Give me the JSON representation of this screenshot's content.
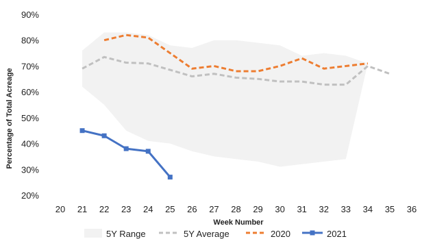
{
  "chart_data": {
    "type": "line",
    "xlabel": "Week Number",
    "ylabel": "Percentage of Total Acreage",
    "x_ticks": [
      20,
      21,
      22,
      23,
      24,
      25,
      26,
      27,
      28,
      29,
      30,
      31,
      32,
      33,
      34,
      35,
      36
    ],
    "xlim": [
      20,
      36
    ],
    "y_ticks": [
      "20%",
      "30%",
      "40%",
      "50%",
      "60%",
      "70%",
      "80%",
      "90%"
    ],
    "ylim": [
      20,
      90
    ],
    "grid": false,
    "legend_position": "bottom",
    "range": {
      "name": "5Y Range",
      "color": "#f2f2f2",
      "x": [
        21,
        22,
        23,
        24,
        25,
        26,
        27,
        28,
        29,
        30,
        31,
        32,
        33,
        34
      ],
      "upper": [
        76,
        83,
        83,
        82,
        78,
        77,
        80,
        80,
        79,
        78,
        74,
        75,
        74,
        71
      ],
      "lower": [
        62,
        55,
        45,
        41,
        40,
        37,
        35,
        34,
        33,
        31,
        32,
        33,
        34,
        71
      ]
    },
    "series": [
      {
        "name": "5Y Average",
        "color": "#c0c0c0",
        "style": "dashed",
        "x": [
          21,
          22,
          23,
          24,
          25,
          26,
          27,
          28,
          29,
          30,
          31,
          32,
          33,
          34,
          35
        ],
        "values": [
          69,
          73.5,
          71.3,
          71,
          68.5,
          66,
          67,
          65.5,
          65,
          64,
          64,
          62.8,
          62.8,
          70,
          67
        ]
      },
      {
        "name": "2020",
        "color": "#ed7d31",
        "style": "dashed",
        "x": [
          22,
          23,
          24,
          25,
          26,
          27,
          28,
          29,
          30,
          31,
          32,
          33,
          34
        ],
        "values": [
          80,
          82,
          81,
          75,
          69,
          70,
          68,
          68,
          70,
          73,
          69,
          70,
          71
        ]
      },
      {
        "name": "2021",
        "color": "#4472c4",
        "style": "solid",
        "marker": "square",
        "x": [
          21,
          22,
          23,
          24,
          25
        ],
        "values": [
          45,
          43,
          38,
          37,
          27
        ]
      }
    ]
  }
}
